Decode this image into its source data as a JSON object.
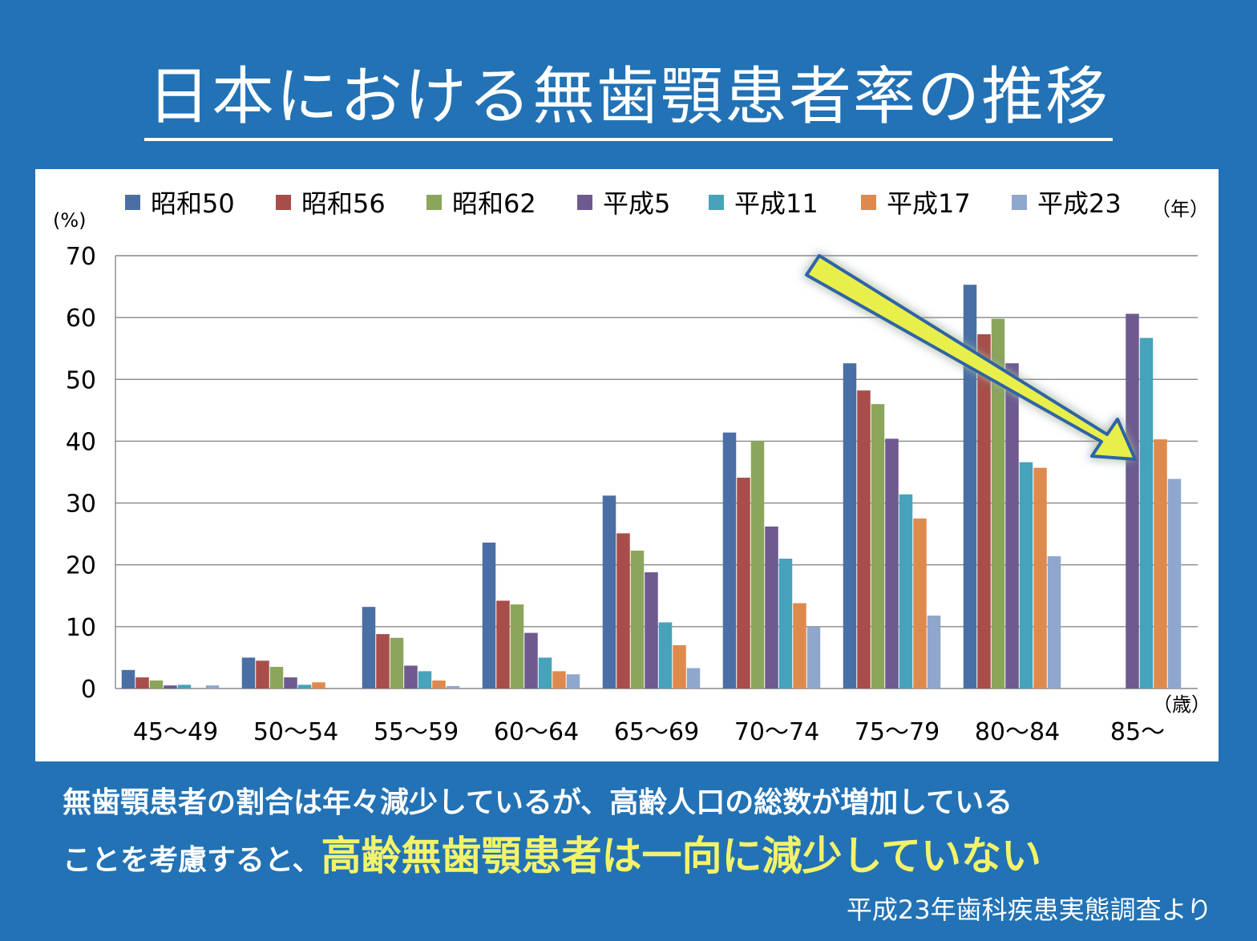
{
  "title": "日本における無歯顎患者率の推移",
  "body": {
    "line1": "無歯顎患者の割合は年々減少しているが、高齢人口の総数が増加している",
    "line2_prefix": "ことを考慮すると、",
    "line2_highlight": "高齢無歯顎患者は一向に減少していない"
  },
  "source": "平成23年歯科疾患実態調査より",
  "chart_data": {
    "type": "bar",
    "ylabel": "(%)",
    "xunit": "（歳）",
    "legend_unit": "（年）",
    "legend_position": "top",
    "ylim": [
      0,
      70
    ],
    "yticks": [
      0,
      10,
      20,
      30,
      40,
      50,
      60,
      70
    ],
    "grid": true,
    "categories": [
      "45～49",
      "50～54",
      "55～59",
      "60～64",
      "65～69",
      "70～74",
      "75～79",
      "80～84",
      "85～"
    ],
    "series": [
      {
        "name": "昭和50",
        "color": "#4a6fa5",
        "values": [
          3.0,
          5.0,
          13.2,
          23.6,
          31.2,
          41.4,
          52.6,
          65.3,
          null
        ]
      },
      {
        "name": "昭和56",
        "color": "#a84e4a",
        "values": [
          1.8,
          4.5,
          8.8,
          14.2,
          25.1,
          34.1,
          48.2,
          57.3,
          null
        ]
      },
      {
        "name": "昭和62",
        "color": "#8ba65b",
        "values": [
          1.3,
          3.5,
          8.2,
          13.6,
          22.3,
          40.0,
          46.0,
          59.8,
          null
        ]
      },
      {
        "name": "平成5",
        "color": "#6e5a8f",
        "values": [
          0.5,
          1.8,
          3.7,
          9.0,
          18.8,
          26.2,
          40.4,
          52.6,
          60.6
        ]
      },
      {
        "name": "平成11",
        "color": "#46a3ba",
        "values": [
          0.6,
          0.6,
          2.8,
          5.0,
          10.7,
          21.0,
          31.4,
          36.6,
          56.7
        ]
      },
      {
        "name": "平成17",
        "color": "#de8a4f",
        "values": [
          0.0,
          1.0,
          1.3,
          2.8,
          7.0,
          13.8,
          27.5,
          35.7,
          40.3
        ]
      },
      {
        "name": "平成23",
        "color": "#8fa7cc",
        "values": [
          0.5,
          0.0,
          0.4,
          2.3,
          3.3,
          10.0,
          11.8,
          21.4,
          33.9
        ]
      }
    ],
    "annotation_arrow": {
      "color": "#e8ef4c",
      "outline": "#2f64a8",
      "from_category": "80～84",
      "to_category": "85～"
    }
  }
}
